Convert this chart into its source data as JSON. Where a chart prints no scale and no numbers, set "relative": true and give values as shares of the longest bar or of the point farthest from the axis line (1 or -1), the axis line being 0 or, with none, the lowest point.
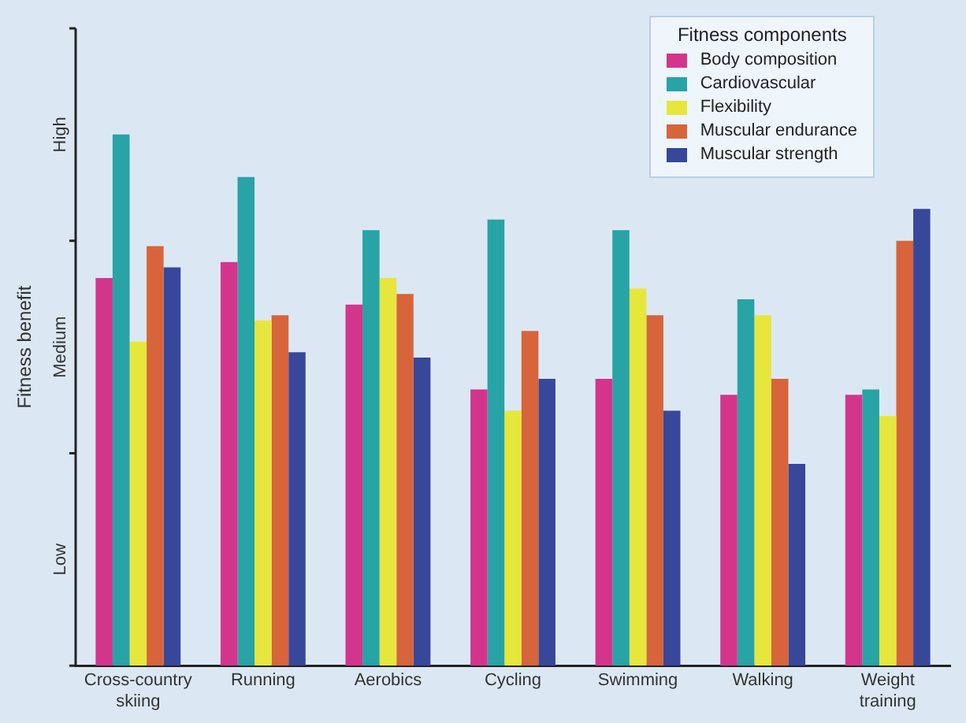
{
  "chart_data": {
    "type": "bar",
    "relative": true,
    "ylabel": "Fitness benefit",
    "legend_title": "Fitness components",
    "legend": "top right",
    "grid": false,
    "annotations": [
      "High",
      "Medium",
      "Low"
    ],
    "categories": [
      "Cross-country skiing",
      "Running",
      "Aerobics",
      "Cycling",
      "Swimming",
      "Walking",
      "Weight training"
    ],
    "series": [
      {
        "name": "Body composition",
        "color": "#d4358c",
        "values": [
          0.73,
          0.76,
          0.68,
          0.52,
          0.54,
          0.51,
          0.51
        ]
      },
      {
        "name": "Cardiovascular",
        "color": "#28a3a6",
        "values": [
          1,
          0.92,
          0.82,
          0.84,
          0.82,
          0.69,
          0.52
        ]
      },
      {
        "name": "Flexibility",
        "color": "#e6e63c",
        "values": [
          0.61,
          0.65,
          0.73,
          0.48,
          0.71,
          0.66,
          0.47
        ]
      },
      {
        "name": "Muscular endurance",
        "color": "#d8643c",
        "values": [
          0.79,
          0.66,
          0.7,
          0.63,
          0.66,
          0.54,
          0.8
        ]
      },
      {
        "name": "Muscular strength",
        "color": "#37479a",
        "values": [
          0.75,
          0.59,
          0.58,
          0.54,
          0.48,
          0.38,
          0.86
        ]
      }
    ]
  }
}
